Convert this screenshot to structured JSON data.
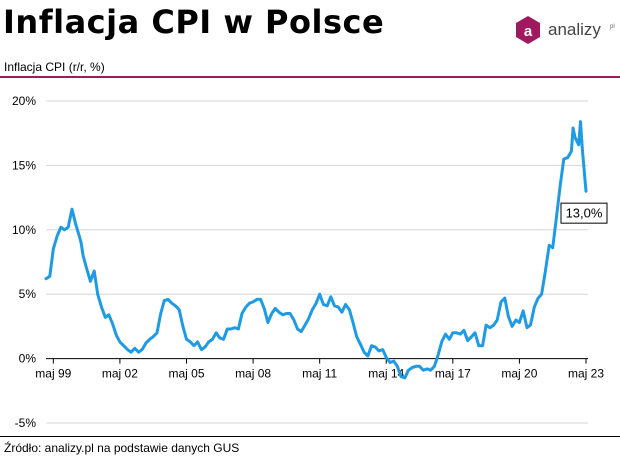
{
  "header": {
    "title": "Inflacja CPI w Polsce",
    "logo_text": "analizy",
    "logo_suffix": "pl",
    "logo_icon": "letter-a-hexagon-icon"
  },
  "colors": {
    "line": "#1e9be4",
    "accent": "#a0195e",
    "grid": "#d6d6d6",
    "axis": "#000000"
  },
  "footer": {
    "source": "Źródło: analizy.pl na podstawie danych GUS"
  },
  "chart_data": {
    "type": "line",
    "ylabel": "Inflacja CPI (r/r, %)",
    "y_ticks": [
      -5,
      0,
      5,
      10,
      15,
      20
    ],
    "y_tick_labels": [
      "-5%",
      "0%",
      "5%",
      "10%",
      "15%",
      "20%"
    ],
    "ylim": [
      -5,
      20
    ],
    "x_ticks": [
      1999.33,
      2002.33,
      2005.33,
      2008.33,
      2011.33,
      2014.33,
      2017.33,
      2020.33,
      2023.33
    ],
    "x_tick_labels": [
      "maj 99",
      "maj 02",
      "maj 05",
      "maj 08",
      "maj 11",
      "maj 14",
      "maj 17",
      "maj 20",
      "maj 23"
    ],
    "xlim": [
      1999.0,
      2023.42
    ],
    "grid": true,
    "annotation": {
      "text": "13,0%",
      "x": 2023.33,
      "y": 13.0
    },
    "series": [
      {
        "x": [
          1999.0,
          1999.17,
          1999.33,
          1999.5,
          1999.67,
          1999.83,
          2000.0,
          2000.17,
          2000.33,
          2000.5,
          2000.58,
          2000.67,
          2000.83,
          2001.0,
          2001.17,
          2001.33,
          2001.5,
          2001.67,
          2001.83,
          2002.0,
          2002.17,
          2002.33,
          2002.5,
          2002.67,
          2002.83,
          2003.0,
          2003.17,
          2003.33,
          2003.5,
          2003.67,
          2003.83,
          2004.0,
          2004.17,
          2004.33,
          2004.5,
          2004.67,
          2004.83,
          2005.0,
          2005.17,
          2005.33,
          2005.5,
          2005.67,
          2005.83,
          2006.0,
          2006.17,
          2006.33,
          2006.5,
          2006.67,
          2006.83,
          2007.0,
          2007.17,
          2007.33,
          2007.5,
          2007.67,
          2007.83,
          2008.0,
          2008.17,
          2008.33,
          2008.5,
          2008.67,
          2008.83,
          2009.0,
          2009.17,
          2009.33,
          2009.5,
          2009.67,
          2009.83,
          2010.0,
          2010.17,
          2010.33,
          2010.5,
          2010.67,
          2010.83,
          2011.0,
          2011.17,
          2011.33,
          2011.5,
          2011.67,
          2011.83,
          2012.0,
          2012.17,
          2012.33,
          2012.5,
          2012.67,
          2012.83,
          2013.0,
          2013.17,
          2013.33,
          2013.5,
          2013.67,
          2013.83,
          2014.0,
          2014.17,
          2014.33,
          2014.5,
          2014.67,
          2014.83,
          2015.0,
          2015.17,
          2015.33,
          2015.5,
          2015.67,
          2015.83,
          2016.0,
          2016.17,
          2016.33,
          2016.5,
          2016.67,
          2016.83,
          2017.0,
          2017.17,
          2017.33,
          2017.5,
          2017.67,
          2017.83,
          2018.0,
          2018.17,
          2018.33,
          2018.5,
          2018.67,
          2018.83,
          2019.0,
          2019.17,
          2019.33,
          2019.5,
          2019.67,
          2019.83,
          2020.0,
          2020.17,
          2020.33,
          2020.5,
          2020.67,
          2020.83,
          2021.0,
          2021.17,
          2021.33,
          2021.5,
          2021.67,
          2021.83,
          2022.0,
          2022.17,
          2022.33,
          2022.5,
          2022.67,
          2022.75,
          2022.83,
          2023.0,
          2023.08,
          2023.17,
          2023.33
        ],
        "values": [
          6.2,
          6.4,
          8.5,
          9.5,
          10.2,
          10.0,
          10.2,
          11.6,
          10.5,
          9.5,
          9.0,
          8.0,
          7.0,
          6.0,
          6.8,
          5.0,
          4.0,
          3.2,
          3.4,
          2.7,
          1.8,
          1.3,
          1.0,
          0.7,
          0.5,
          0.8,
          0.5,
          0.7,
          1.2,
          1.5,
          1.7,
          2.0,
          3.5,
          4.5,
          4.6,
          4.3,
          4.1,
          3.8,
          2.5,
          1.5,
          1.3,
          1.0,
          1.3,
          0.7,
          0.9,
          1.3,
          1.5,
          2.0,
          1.6,
          1.5,
          2.3,
          2.3,
          2.4,
          2.3,
          3.5,
          4.0,
          4.3,
          4.4,
          4.6,
          4.6,
          3.9,
          2.8,
          3.5,
          3.9,
          3.6,
          3.4,
          3.5,
          3.5,
          3.0,
          2.3,
          2.1,
          2.6,
          3.1,
          3.8,
          4.3,
          5.0,
          4.2,
          4.1,
          4.8,
          4.1,
          4.0,
          3.6,
          4.2,
          3.8,
          2.8,
          1.7,
          1.1,
          0.5,
          0.2,
          1.0,
          0.9,
          0.6,
          0.7,
          0.1,
          -0.3,
          -0.2,
          -0.6,
          -1.4,
          -1.5,
          -0.9,
          -0.7,
          -0.6,
          -0.6,
          -0.9,
          -0.8,
          -0.9,
          -0.6,
          0.3,
          1.3,
          1.9,
          1.5,
          2.0,
          2.0,
          1.9,
          2.2,
          1.4,
          1.7,
          2.0,
          1.0,
          1.0,
          2.6,
          2.4,
          2.6,
          3.0,
          4.4,
          4.7,
          3.3,
          2.5,
          3.0,
          2.8,
          3.7,
          2.4,
          2.6,
          4.0,
          4.7,
          5.0,
          6.8,
          8.8,
          8.6,
          11.0,
          13.5,
          15.5,
          15.6,
          16.1,
          17.9,
          17.2,
          16.6,
          18.4,
          16.1,
          13.0
        ]
      }
    ]
  }
}
